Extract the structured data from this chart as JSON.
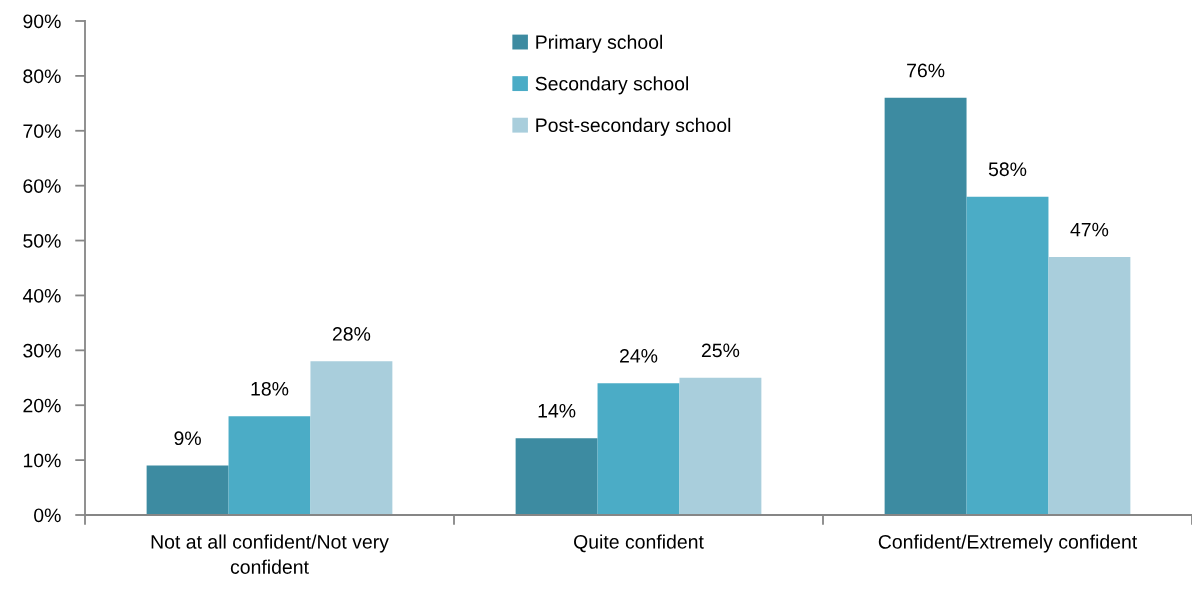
{
  "chart_data": {
    "type": "bar",
    "categories": [
      "Not at all confident/Not very\nconfident",
      "Quite confident",
      "Confident/Extremely confident"
    ],
    "series": [
      {
        "name": "Primary school",
        "color": "#3d8ba1",
        "values": [
          9,
          14,
          76
        ],
        "value_labels": [
          "9%",
          "14%",
          "76%"
        ]
      },
      {
        "name": "Secondary school",
        "color": "#4bacc6",
        "values": [
          18,
          24,
          58
        ],
        "value_labels": [
          "18%",
          "24%",
          "58%"
        ]
      },
      {
        "name": "Post-secondary school",
        "color": "#a9cedc",
        "values": [
          28,
          25,
          47
        ],
        "value_labels": [
          "28%",
          "25%",
          "47%"
        ]
      }
    ],
    "ylim": [
      0,
      90
    ],
    "yticks": [
      {
        "value": 0,
        "label": "0%"
      },
      {
        "value": 10,
        "label": "10%"
      },
      {
        "value": 20,
        "label": "20%"
      },
      {
        "value": 30,
        "label": "30%"
      },
      {
        "value": 40,
        "label": "40%"
      },
      {
        "value": 50,
        "label": "50%"
      },
      {
        "value": 60,
        "label": "60%"
      },
      {
        "value": 70,
        "label": "70%"
      },
      {
        "value": 80,
        "label": "80%"
      },
      {
        "value": 90,
        "label": "90%"
      }
    ],
    "legend": "top"
  }
}
